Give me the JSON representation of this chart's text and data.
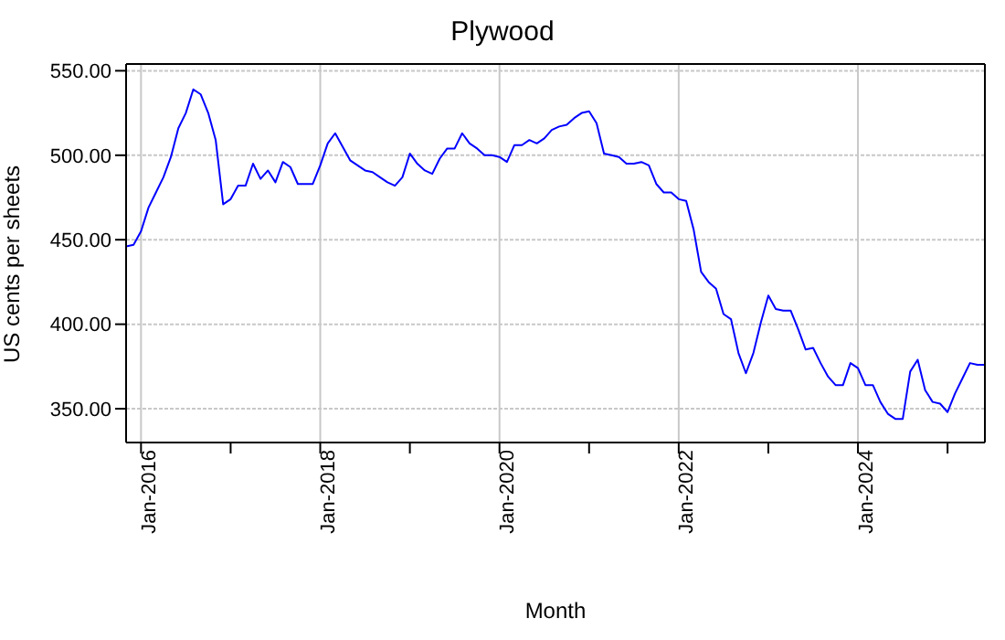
{
  "chart_data": {
    "type": "line",
    "title": "Plywood",
    "xlabel": "Month",
    "ylabel": "US cents per sheets",
    "x": [
      "2015-11",
      "2015-12",
      "2016-01",
      "2016-02",
      "2016-03",
      "2016-04",
      "2016-05",
      "2016-06",
      "2016-07",
      "2016-08",
      "2016-09",
      "2016-10",
      "2016-11",
      "2016-12",
      "2017-01",
      "2017-02",
      "2017-03",
      "2017-04",
      "2017-05",
      "2017-06",
      "2017-07",
      "2017-08",
      "2017-09",
      "2017-10",
      "2017-11",
      "2017-12",
      "2018-01",
      "2018-02",
      "2018-03",
      "2018-04",
      "2018-05",
      "2018-06",
      "2018-07",
      "2018-08",
      "2018-09",
      "2018-10",
      "2018-11",
      "2018-12",
      "2019-01",
      "2019-02",
      "2019-03",
      "2019-04",
      "2019-05",
      "2019-06",
      "2019-07",
      "2019-08",
      "2019-09",
      "2019-10",
      "2019-11",
      "2019-12",
      "2020-01",
      "2020-02",
      "2020-03",
      "2020-04",
      "2020-05",
      "2020-06",
      "2020-07",
      "2020-08",
      "2020-09",
      "2020-10",
      "2020-11",
      "2020-12",
      "2021-01",
      "2021-02",
      "2021-03",
      "2021-04",
      "2021-05",
      "2021-06",
      "2021-07",
      "2021-08",
      "2021-09",
      "2021-10",
      "2021-11",
      "2021-12",
      "2022-01",
      "2022-02",
      "2022-03",
      "2022-04",
      "2022-05",
      "2022-06",
      "2022-07",
      "2022-08",
      "2022-09",
      "2022-10",
      "2022-11",
      "2022-12",
      "2023-01",
      "2023-02",
      "2023-03",
      "2023-04",
      "2023-05",
      "2023-06",
      "2023-07",
      "2023-08",
      "2023-09",
      "2023-10",
      "2023-11",
      "2023-12",
      "2024-01",
      "2024-02",
      "2024-03",
      "2024-04",
      "2024-05",
      "2024-06",
      "2024-07",
      "2024-08",
      "2024-09",
      "2024-10",
      "2024-11",
      "2024-12",
      "2025-01",
      "2025-02",
      "2025-03",
      "2025-04",
      "2025-05",
      "2025-06"
    ],
    "series": [
      {
        "color": "#0000ff",
        "values": [
          446,
          447,
          455,
          469,
          478,
          487,
          499,
          516,
          525,
          539,
          536,
          525,
          509,
          471,
          474,
          482,
          482,
          495,
          486,
          491,
          484,
          496,
          493,
          483,
          483,
          483,
          494,
          507,
          513,
          505,
          497,
          494,
          491,
          490,
          487,
          484,
          482,
          487,
          501,
          495,
          491,
          489,
          498,
          504,
          504,
          513,
          507,
          504,
          500,
          500,
          499,
          496,
          506,
          506,
          509,
          507,
          510,
          515,
          517,
          518,
          522,
          525,
          526,
          519,
          501,
          500,
          499,
          495,
          495,
          496,
          494,
          483,
          478,
          478,
          474,
          473,
          456,
          431,
          425,
          421,
          406,
          403,
          383,
          371,
          383,
          401,
          417,
          409,
          408,
          408,
          397,
          385,
          386,
          377,
          369,
          364,
          364,
          377,
          374,
          364,
          364,
          354,
          347,
          344,
          344,
          372,
          379,
          361,
          354,
          353,
          348,
          359,
          368,
          377,
          376,
          376
        ]
      }
    ],
    "xlim": [
      "2015-11",
      "2025-06"
    ],
    "xticks": [
      {
        "value": "2016-01",
        "label": "Jan-2016"
      },
      {
        "value": "2017-01",
        "label": null
      },
      {
        "value": "2018-01",
        "label": "Jan-2018"
      },
      {
        "value": "2019-01",
        "label": null
      },
      {
        "value": "2020-01",
        "label": "Jan-2020"
      },
      {
        "value": "2021-01",
        "label": null
      },
      {
        "value": "2022-01",
        "label": "Jan-2022"
      },
      {
        "value": "2023-01",
        "label": null
      },
      {
        "value": "2024-01",
        "label": "Jan-2024"
      },
      {
        "value": "2025-01",
        "label": null
      }
    ],
    "ylim": [
      330,
      554
    ],
    "yticks": [
      {
        "value": 350,
        "label": "350.00"
      },
      {
        "value": 400,
        "label": "400.00"
      },
      {
        "value": 450,
        "label": "450.00"
      },
      {
        "value": 500,
        "label": "500.00"
      },
      {
        "value": 550,
        "label": "550.00"
      }
    ],
    "grid": true,
    "marker": "none",
    "line_style": "solid"
  }
}
